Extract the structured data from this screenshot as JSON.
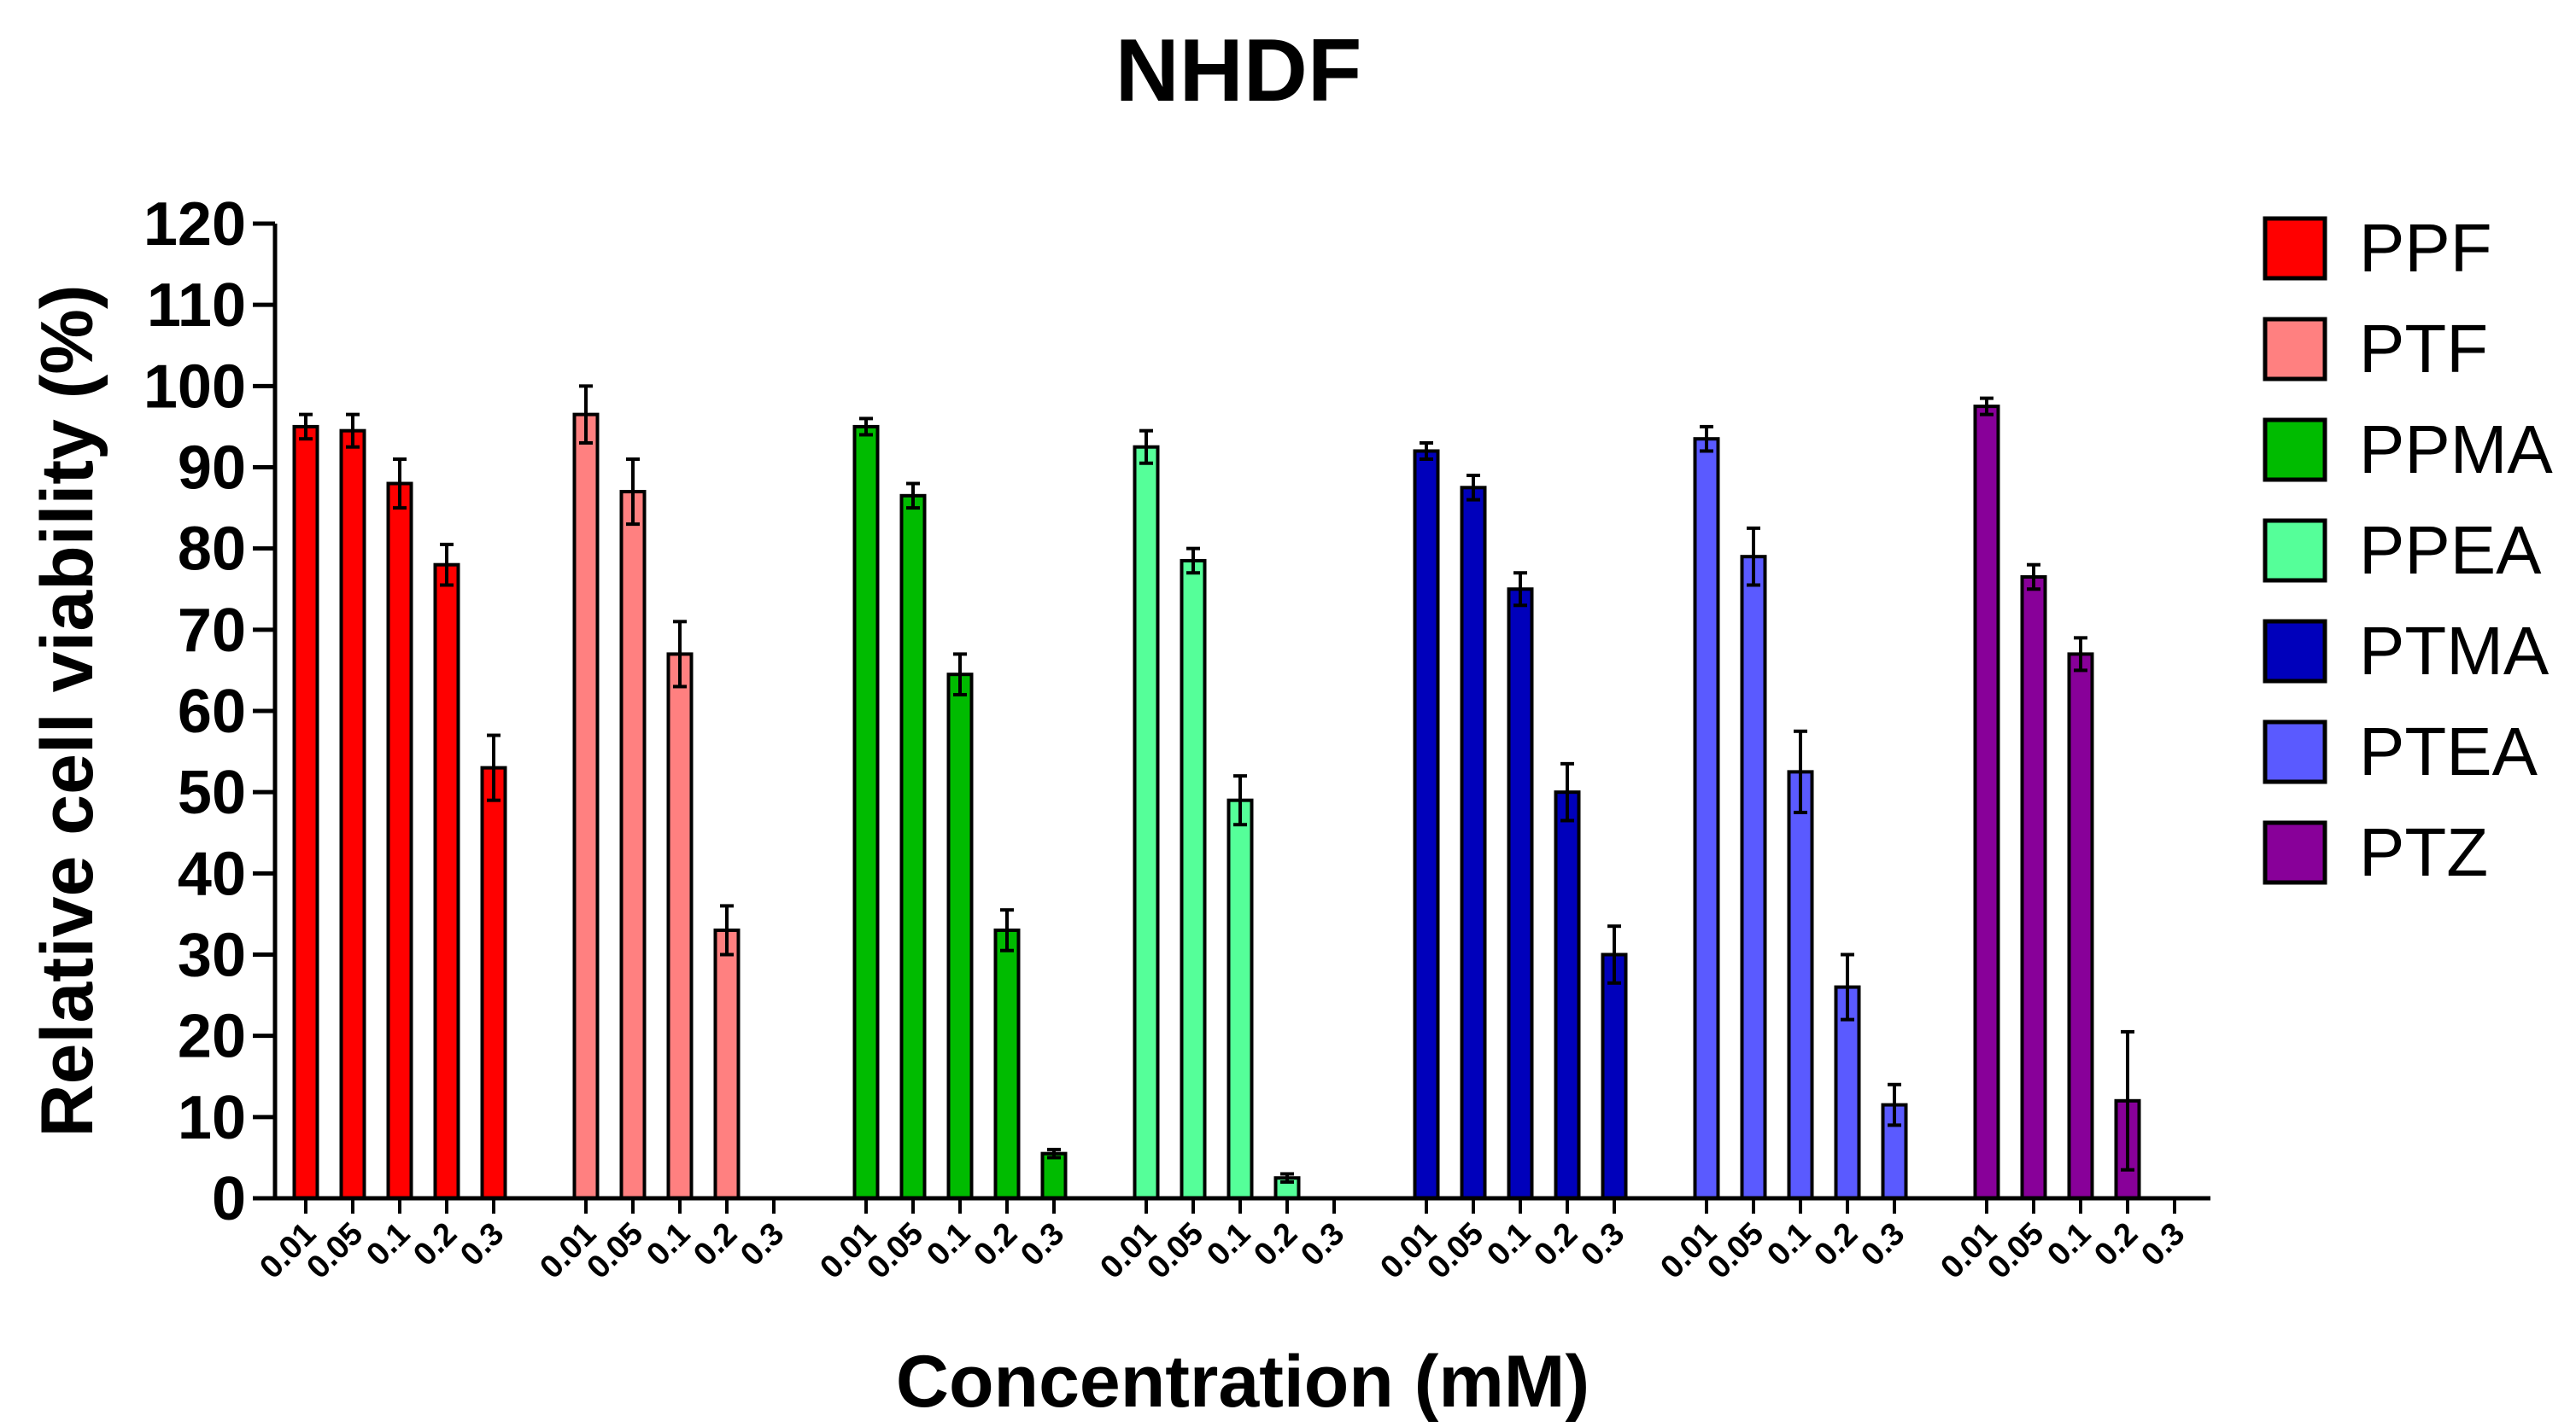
{
  "chart_data": {
    "type": "bar",
    "title": "NHDF",
    "xlabel": "Concentration (mM)",
    "ylabel": "Relative cell viability (%)",
    "ylim": [
      0,
      120
    ],
    "yticks": [
      "0",
      "10",
      "20",
      "30",
      "40",
      "50",
      "60",
      "70",
      "80",
      "90",
      "100",
      "110",
      "120"
    ],
    "categories": [
      "0.01",
      "0.05",
      "0.1",
      "0.2",
      "0.3"
    ],
    "legend_position": "right",
    "series": [
      {
        "name": "PPF",
        "color": "#ff0000",
        "values": [
          95,
          94.5,
          88,
          78,
          53
        ],
        "errors": [
          1.5,
          2,
          3,
          2.5,
          4
        ]
      },
      {
        "name": "PTF",
        "color": "#ff8080",
        "values": [
          96.5,
          87,
          67,
          33,
          0
        ],
        "errors": [
          3.5,
          4,
          4,
          3,
          0
        ]
      },
      {
        "name": "PPMA",
        "color": "#00bb00",
        "values": [
          95,
          86.5,
          64.5,
          33,
          5.5
        ],
        "errors": [
          1,
          1.5,
          2.5,
          2.5,
          0.5
        ]
      },
      {
        "name": "PPEA",
        "color": "#55ff99",
        "values": [
          92.5,
          78.5,
          49,
          2.5,
          0
        ],
        "errors": [
          2,
          1.5,
          3,
          0.5,
          0
        ]
      },
      {
        "name": "PTMA",
        "color": "#0000bb",
        "values": [
          92,
          87.5,
          75,
          50,
          30
        ],
        "errors": [
          1,
          1.5,
          2,
          3.5,
          3.5
        ]
      },
      {
        "name": "PTEA",
        "color": "#5a5aff",
        "values": [
          93.5,
          79,
          52.5,
          26,
          11.5
        ],
        "errors": [
          1.5,
          3.5,
          5,
          4,
          2.5
        ]
      },
      {
        "name": "PTZ",
        "color": "#880099",
        "values": [
          97.5,
          76.5,
          67,
          12,
          0
        ],
        "errors": [
          1,
          1.5,
          2,
          8.5,
          0
        ]
      }
    ]
  }
}
